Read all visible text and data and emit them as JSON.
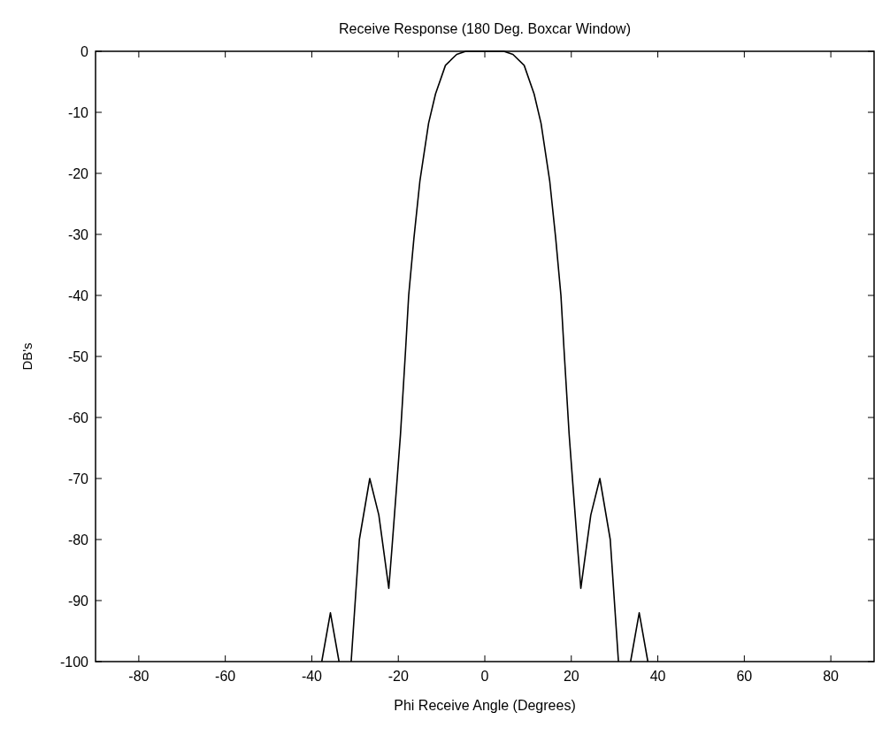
{
  "chart_data": {
    "type": "line",
    "title": "Receive Response (180 Deg. Boxcar Window)",
    "xlabel": "Phi Receive Angle (Degrees)",
    "ylabel": "DB's",
    "xlim": [
      -90,
      90
    ],
    "xticks": [
      -80,
      -60,
      -40,
      -20,
      0,
      20,
      40,
      60,
      80
    ],
    "ylim": [
      -100,
      0
    ],
    "yticks": [
      -100,
      -90,
      -80,
      -70,
      -60,
      -50,
      -40,
      -30,
      -20,
      -10,
      0
    ],
    "grid": false,
    "marker": "none",
    "line_style": "solid",
    "series": [
      {
        "color": "#000000",
        "x": [
          -37.7,
          -35.7,
          -33.7,
          -32.3,
          -30.9,
          -29,
          -26.6,
          -24.5,
          -22.2,
          -21.5,
          -20.5,
          -19.5,
          -18.3,
          -17.6,
          -16.4,
          -15,
          -13,
          -11.4,
          -9.1,
          -6.5,
          -4.4,
          0,
          4.4,
          6.5,
          9.1,
          11.4,
          13,
          15,
          16.4,
          17.6,
          18.3,
          19.5,
          20.5,
          21.5,
          22.2,
          24.5,
          26.6,
          29,
          30.9,
          32.3,
          33.7,
          35.7,
          37.7
        ],
        "values": [
          -100,
          -92,
          -100,
          null,
          -100,
          -80,
          -70,
          -76,
          -88,
          -81.7,
          -72.3,
          -62.8,
          -48.7,
          -40,
          -30.7,
          -21.2,
          -11.8,
          -7,
          -2.3,
          -0.5,
          0,
          0,
          0,
          -0.5,
          -2.3,
          -7,
          -11.8,
          -21.2,
          -30.7,
          -40,
          -48.7,
          -62.8,
          -72.3,
          -81.7,
          -88,
          -76,
          -70,
          -80,
          -100,
          null,
          -100,
          -92,
          -100
        ]
      }
    ]
  }
}
